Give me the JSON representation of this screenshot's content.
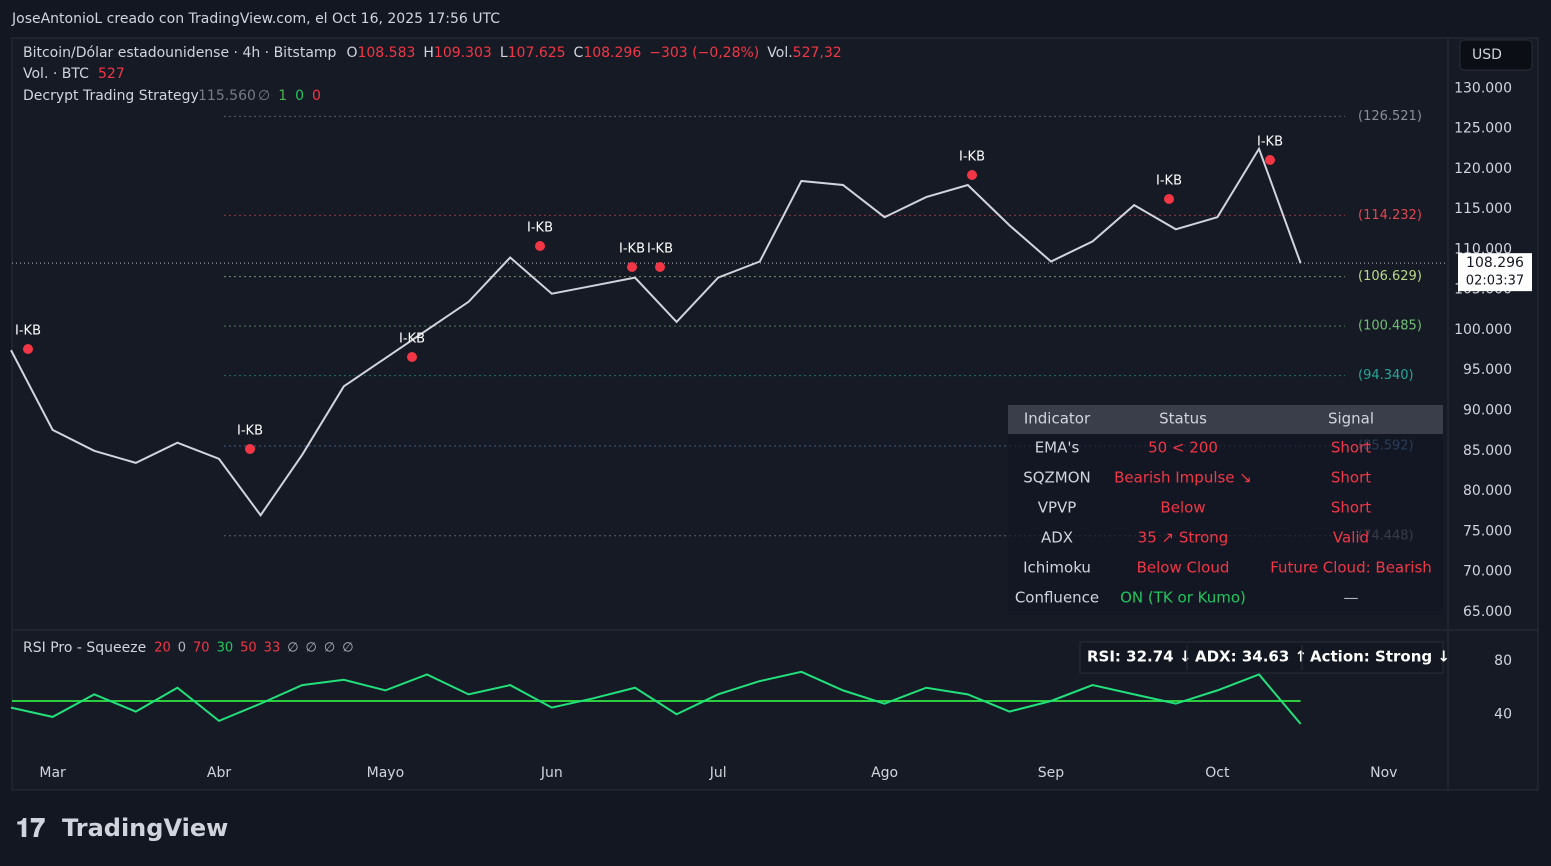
{
  "header": {
    "author_line": "JoseAntonioL creado con TradingView.com, el Oct 16, 2025 17:56 UTC"
  },
  "legend": {
    "symbol": "Bitcoin/Dólar estadounidense · 4h · Bitstamp",
    "ohlc": [
      {
        "key": "O",
        "value": "108.583"
      },
      {
        "key": "H",
        "value": "109.303"
      },
      {
        "key": "L",
        "value": "107.625"
      },
      {
        "key": "C",
        "value": "108.296"
      }
    ],
    "change": "−303 (−0,28%)",
    "volume_key": "Vol.",
    "volume_value": "527,32",
    "vol_line_key": "Vol. · BTC",
    "vol_line_value": "527",
    "strategy": "Decrypt Trading Strategy",
    "strategy_value": "115.560",
    "strategy_flags": [
      "∅",
      "1",
      "0",
      "0"
    ]
  },
  "currency_button": "USD",
  "current_price": {
    "value": 108296,
    "label": "108.296",
    "countdown": "02:03:37"
  },
  "levels": [
    {
      "value": 126521,
      "label": "(126.521)",
      "color": "#8a8e99"
    },
    {
      "value": 114232,
      "label": "(114.232)",
      "color": "#e0474f"
    },
    {
      "value": 106629,
      "label": "(106.629)",
      "color": "#b9d98a"
    },
    {
      "value": 100485,
      "label": "(100.485)",
      "color": "#6fbf73"
    },
    {
      "value": 94340,
      "label": "(94.340)",
      "color": "#26a69a"
    },
    {
      "value": 85592,
      "label": "(85.592)",
      "color": "#5b8fd9"
    },
    {
      "value": 74448,
      "label": "(74.448)",
      "color": "#8a8e99"
    }
  ],
  "signals": [
    "I-KB",
    "I-KB",
    "I-KB",
    "I-KB",
    "I-KB",
    "I-KB",
    "I-KB",
    "I-KB",
    "I-KB"
  ],
  "table": {
    "header": [
      "Indicator",
      "Status",
      "Signal"
    ],
    "rows": [
      {
        "indicator": "EMA's",
        "status": "50 < 200",
        "signal": "Short",
        "status_color": "#f23645",
        "signal_color": "#f23645"
      },
      {
        "indicator": "SQZMON",
        "status": "Bearish Impulse ↘",
        "signal": "Short",
        "status_color": "#f23645",
        "signal_color": "#f23645"
      },
      {
        "indicator": "VPVP",
        "status": "Below",
        "signal": "Short",
        "status_color": "#f23645",
        "signal_color": "#f23645"
      },
      {
        "indicator": "ADX",
        "status": "35 ↗ Strong",
        "signal": "Valid",
        "status_color": "#f23645",
        "signal_color": "#f23645"
      },
      {
        "indicator": "Ichimoku",
        "status": "Below Cloud",
        "signal": "Future Cloud: Bearish",
        "status_color": "#f23645",
        "signal_color": "#f23645"
      },
      {
        "indicator": "Confluence",
        "status": "ON (TK or Kumo)",
        "signal": "—",
        "status_color": "#22c55e",
        "signal_color": "#b2b5be"
      }
    ]
  },
  "rsi_legend": {
    "name": "RSI Pro - Squeeze",
    "params": [
      "20",
      "0",
      "70",
      "30",
      "50",
      "33",
      "∅",
      "∅",
      "∅",
      "∅"
    ]
  },
  "rsi_status": [
    "RSI: 32.74 ↓",
    "ADX: 34.63 ↑",
    "Action: Strong ↓"
  ],
  "footer": {
    "logo": "TradingView"
  },
  "chart_data": [
    {
      "type": "line",
      "color": "#d1d4dc",
      "categories": [
        null,
        "Mar",
        null,
        null,
        null,
        "Abr",
        null,
        null,
        null,
        "Mayo",
        null,
        null,
        null,
        "Jun",
        null,
        null,
        null,
        "Jul",
        null,
        null,
        null,
        "Ago",
        null,
        null,
        null,
        "Sep",
        null,
        null,
        null,
        "Oct",
        null,
        null,
        null,
        "Nov"
      ],
      "values": [
        97500,
        87600,
        85000,
        83500,
        86000,
        84000,
        77000,
        84500,
        93000,
        96500,
        100000,
        103500,
        109000,
        104500,
        105500,
        106500,
        101000,
        106500,
        108500,
        118500,
        118000,
        114000,
        116500,
        118000,
        113000,
        108500,
        111000,
        115500,
        112500,
        114000,
        122500,
        108296,
        null,
        null
      ],
      "ylim": [
        63000,
        136000
      ],
      "yticks": [
        {
          "value": 65000,
          "label": "65.000"
        },
        {
          "value": 70000,
          "label": "70.000"
        },
        {
          "value": 75000,
          "label": "75.000"
        },
        {
          "value": 80000,
          "label": "80.000"
        },
        {
          "value": 85000,
          "label": "85.000"
        },
        {
          "value": 90000,
          "label": "90.000"
        },
        {
          "value": 95000,
          "label": "95.000"
        },
        {
          "value": 100000,
          "label": "100.000"
        },
        {
          "value": 105000,
          "label": "105.000"
        },
        {
          "value": 110000,
          "label": "110.000"
        },
        {
          "value": 115000,
          "label": "115.000"
        },
        {
          "value": 120000,
          "label": "120.000"
        },
        {
          "value": 125000,
          "label": "125.000"
        },
        {
          "value": 130000,
          "label": "130.000"
        }
      ],
      "grid": false
    },
    {
      "type": "line",
      "color": "#22e07a",
      "threshold": 50,
      "threshold_color": "#2ecc40",
      "categories": [
        null,
        "Mar",
        null,
        null,
        null,
        "Abr",
        null,
        null,
        null,
        "Mayo",
        null,
        null,
        null,
        "Jun",
        null,
        null,
        null,
        "Jul",
        null,
        null,
        null,
        "Ago",
        null,
        null,
        null,
        "Sep",
        null,
        null,
        null,
        "Oct",
        null,
        null,
        null,
        "Nov"
      ],
      "values": [
        45,
        38,
        55,
        42,
        60,
        35,
        48,
        62,
        66,
        58,
        70,
        55,
        62,
        45,
        52,
        60,
        40,
        55,
        65,
        72,
        58,
        48,
        60,
        55,
        42,
        50,
        62,
        55,
        48,
        58,
        70,
        32.74,
        null,
        null
      ],
      "ylim": [
        4,
        99
      ],
      "yticks": [
        40,
        80
      ],
      "grid": false
    }
  ]
}
